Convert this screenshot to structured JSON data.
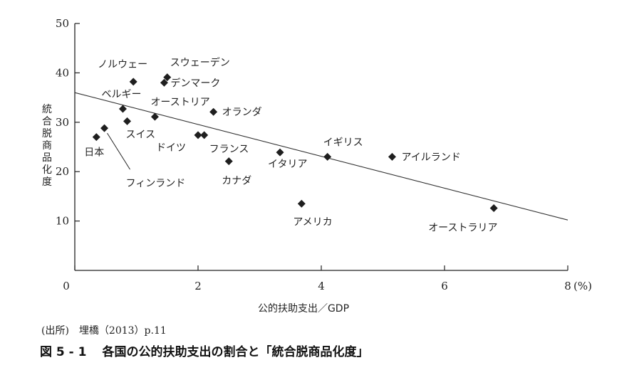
{
  "source_note": "(出所)　埋橋（2013）p.11",
  "figure": {
    "number": "図 5 - 1",
    "title": "各国の公的扶助支出の割合と「統合脱商品化度」"
  },
  "chart_data": {
    "type": "scatter",
    "xlabel": "公的扶助支出／GDP",
    "ylabel": "統合脱商品化度",
    "x_unit": "(%)",
    "xlim": [
      0,
      8
    ],
    "ylim": [
      0,
      50
    ],
    "x_ticks": [
      0,
      2,
      4,
      6,
      8
    ],
    "y_ticks": [
      10,
      20,
      30,
      40,
      50
    ],
    "grid": false,
    "points": [
      {
        "label": "ノルウェー",
        "x": 0.95,
        "y": 38.2
      },
      {
        "label": "スウェーデン",
        "x": 1.5,
        "y": 39.1
      },
      {
        "label": "デンマーク",
        "x": 1.45,
        "y": 38.0
      },
      {
        "label": "ベルギー",
        "x": 0.78,
        "y": 32.7
      },
      {
        "label": "オーストリア",
        "x": 1.3,
        "y": 31.1
      },
      {
        "label": "オランダ",
        "x": 2.25,
        "y": 32.1
      },
      {
        "label": "スイス",
        "x": 0.85,
        "y": 30.2
      },
      {
        "label": "日本",
        "x": 0.35,
        "y": 27.0
      },
      {
        "label": "フィンランド",
        "x": 0.48,
        "y": 28.8
      },
      {
        "label": "ドイツ",
        "x": 2.0,
        "y": 27.4
      },
      {
        "label": "フランス",
        "x": 2.1,
        "y": 27.4
      },
      {
        "label": "カナダ",
        "x": 2.5,
        "y": 22.1
      },
      {
        "label": "イタリア",
        "x": 3.33,
        "y": 23.9
      },
      {
        "label": "イギリス",
        "x": 4.1,
        "y": 23.0
      },
      {
        "label": "アイルランド",
        "x": 5.15,
        "y": 23.0
      },
      {
        "label": "アメリカ",
        "x": 3.68,
        "y": 13.5
      },
      {
        "label": "オーストラリア",
        "x": 6.8,
        "y": 12.6
      }
    ],
    "trendline": {
      "x1": 0,
      "y1": 36.0,
      "x2": 8,
      "y2": 10.2
    }
  }
}
